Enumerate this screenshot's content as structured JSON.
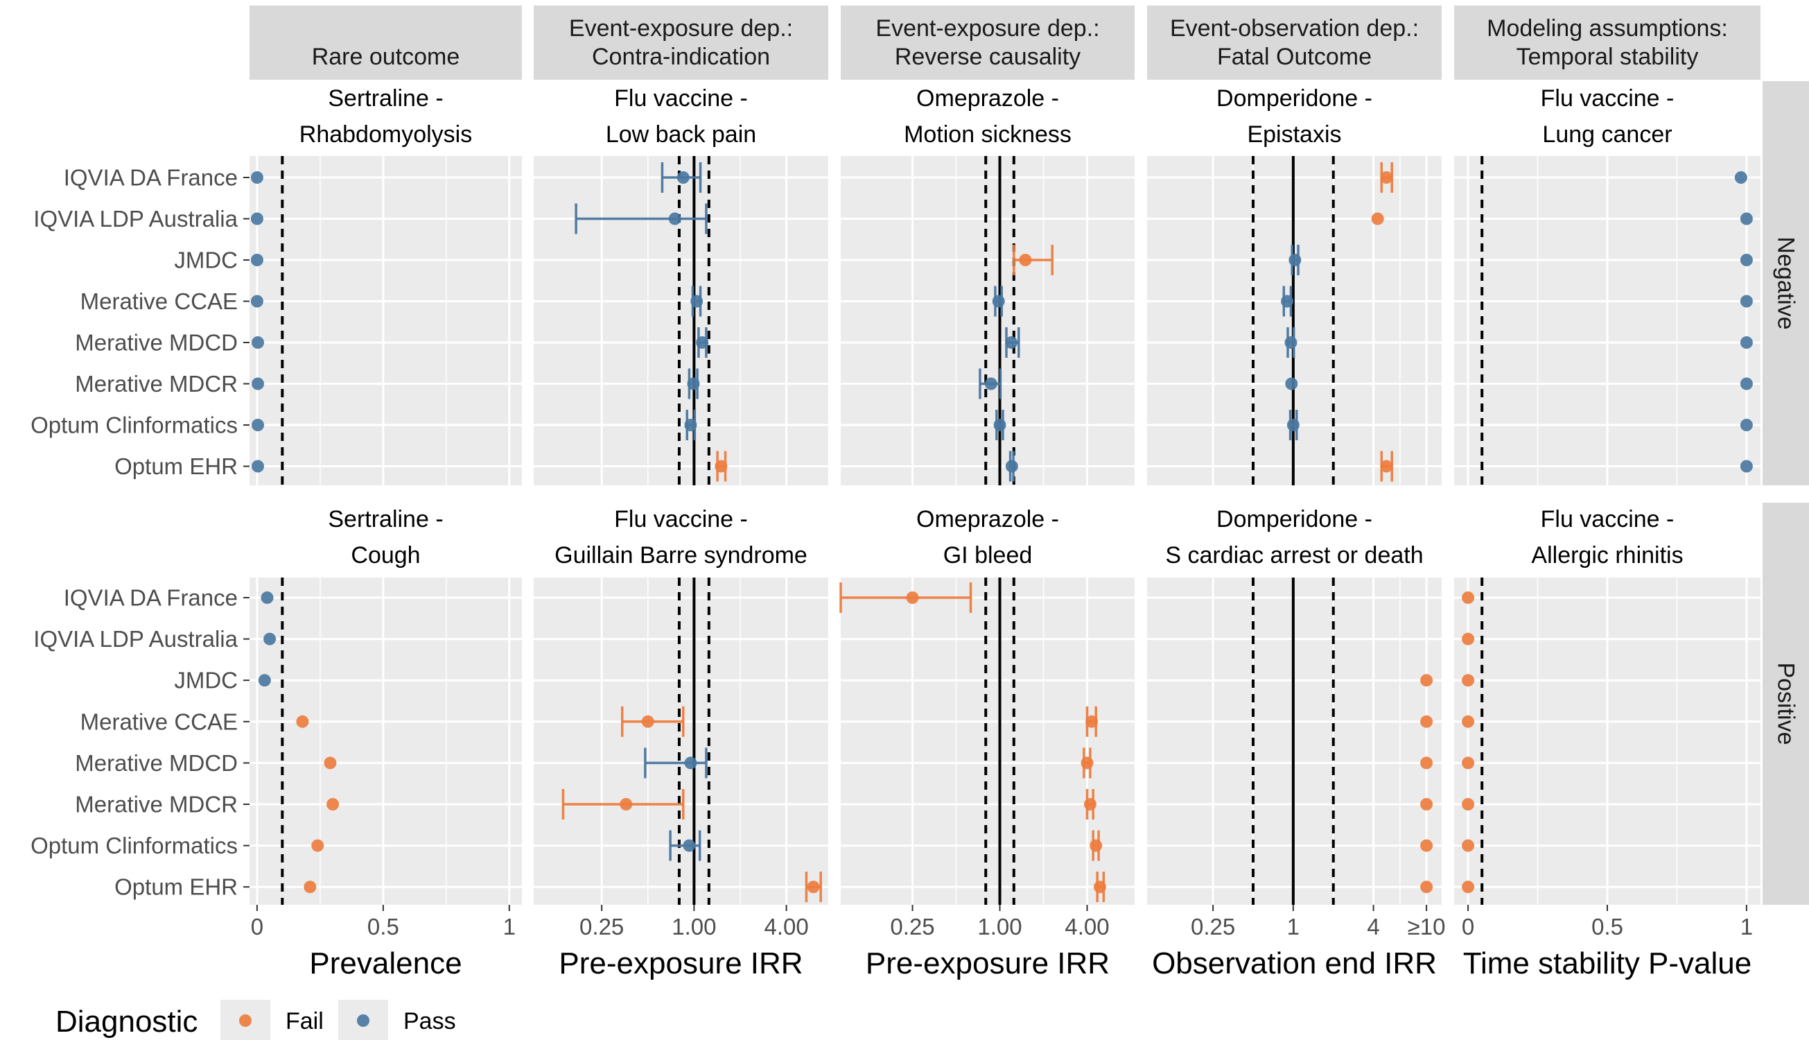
{
  "chart_data": {
    "type": "scatter",
    "colors": {
      "Fail": "#ED7D3E",
      "Pass": "#4A77A0"
    },
    "legend": {
      "title": "Diagnostic",
      "entries": [
        "Fail",
        "Pass"
      ],
      "placement": "bottom-left"
    },
    "databases": [
      "IQVIA DA France",
      "IQVIA LDP Australia",
      "JMDC",
      "Merative CCAE",
      "Merative MDCD",
      "Merative MDCR",
      "Optum Clinformatics",
      "Optum EHR"
    ],
    "row_strips": [
      "Negative",
      "Positive"
    ],
    "column_strips": [
      {
        "line1": "",
        "line2": "Rare outcome"
      },
      {
        "line1": "Event-exposure dep.:",
        "line2": "Contra-indication"
      },
      {
        "line1": "Event-exposure dep.:",
        "line2": "Reverse causality"
      },
      {
        "line1": "Event-observation dep.:",
        "line2": "Fatal Outcome"
      },
      {
        "line1": "Modeling assumptions:",
        "line2": "Temporal stability"
      }
    ],
    "columns": [
      {
        "xlabel": "Prevalence",
        "scale": "linear",
        "xlim": [
          -0.03,
          1.05
        ],
        "ticks": [
          0,
          0.5,
          1
        ],
        "tick_labels": [
          "0",
          "0.5",
          "1"
        ],
        "dashed": [
          0.1
        ],
        "solid": []
      },
      {
        "xlabel": "Pre-exposure IRR",
        "scale": "log",
        "xlim": [
          0.09,
          7.5
        ],
        "ticks": [
          0.25,
          1,
          4
        ],
        "tick_labels": [
          "0.25",
          "1.00",
          "4.00"
        ],
        "dashed": [
          0.8,
          1.25
        ],
        "solid": [
          1
        ]
      },
      {
        "xlabel": "Pre-exposure IRR",
        "scale": "log",
        "xlim": [
          0.08,
          8.5
        ],
        "ticks": [
          0.25,
          1,
          4
        ],
        "tick_labels": [
          "0.25",
          "1.00",
          "4.00"
        ],
        "dashed": [
          0.8,
          1.25
        ],
        "solid": [
          1
        ]
      },
      {
        "xlabel": "Observation end IRR",
        "scale": "log",
        "xlim": [
          0.08,
          13
        ],
        "ticks": [
          0.25,
          1,
          4,
          10
        ],
        "tick_labels": [
          "0.25",
          "1",
          "4",
          "≥10"
        ],
        "dashed": [
          0.5,
          2
        ],
        "solid": [
          1
        ]
      },
      {
        "xlabel": "Time stability P-value",
        "scale": "linear",
        "xlim": [
          -0.05,
          1.05
        ],
        "ticks": [
          0,
          0.5,
          1
        ],
        "tick_labels": [
          "0",
          "0.5",
          "1"
        ],
        "dashed": [
          0.05
        ],
        "solid": []
      }
    ],
    "panels": [
      {
        "row": 0,
        "col": 0,
        "title1": "Sertraline -",
        "title2": "Rhabdomyolysis",
        "points": [
          {
            "db": "IQVIA DA France",
            "x": 0.0,
            "status": "Pass"
          },
          {
            "db": "IQVIA LDP Australia",
            "x": 0.0,
            "status": "Pass"
          },
          {
            "db": "JMDC",
            "x": 0.0,
            "status": "Pass"
          },
          {
            "db": "Merative CCAE",
            "x": 0.0,
            "status": "Pass"
          },
          {
            "db": "Merative MDCD",
            "x": 0.003,
            "status": "Pass"
          },
          {
            "db": "Merative MDCR",
            "x": 0.003,
            "status": "Pass"
          },
          {
            "db": "Optum Clinformatics",
            "x": 0.003,
            "status": "Pass"
          },
          {
            "db": "Optum EHR",
            "x": 0.003,
            "status": "Pass"
          }
        ]
      },
      {
        "row": 0,
        "col": 1,
        "title1": "Flu vaccine -",
        "title2": "Low back pain",
        "points": [
          {
            "db": "IQVIA DA France",
            "x": 0.85,
            "lo": 0.62,
            "hi": 1.1,
            "status": "Pass"
          },
          {
            "db": "IQVIA LDP Australia",
            "x": 0.75,
            "lo": 0.17,
            "hi": 1.2,
            "status": "Pass"
          },
          {
            "db": "Merative CCAE",
            "x": 1.04,
            "lo": 0.98,
            "hi": 1.1,
            "status": "Pass"
          },
          {
            "db": "Merative MDCD",
            "x": 1.13,
            "lo": 1.07,
            "hi": 1.2,
            "status": "Pass"
          },
          {
            "db": "Merative MDCR",
            "x": 0.99,
            "lo": 0.93,
            "hi": 1.05,
            "status": "Pass"
          },
          {
            "db": "Optum Clinformatics",
            "x": 0.95,
            "lo": 0.9,
            "hi": 1.01,
            "status": "Pass"
          },
          {
            "db": "Optum EHR",
            "x": 1.5,
            "lo": 1.42,
            "hi": 1.6,
            "status": "Fail"
          }
        ]
      },
      {
        "row": 0,
        "col": 2,
        "title1": "Omeprazole -",
        "title2": "Motion sickness",
        "points": [
          {
            "db": "JMDC",
            "x": 1.5,
            "lo": 1.25,
            "hi": 2.3,
            "status": "Fail"
          },
          {
            "db": "Merative CCAE",
            "x": 0.98,
            "lo": 0.93,
            "hi": 1.03,
            "status": "Pass"
          },
          {
            "db": "Merative MDCD",
            "x": 1.2,
            "lo": 1.11,
            "hi": 1.35,
            "status": "Pass"
          },
          {
            "db": "Merative MDCR",
            "x": 0.87,
            "lo": 0.73,
            "hi": 1.01,
            "status": "Pass"
          },
          {
            "db": "Optum Clinformatics",
            "x": 1.0,
            "lo": 0.95,
            "hi": 1.05,
            "status": "Pass"
          },
          {
            "db": "Optum EHR",
            "x": 1.21,
            "lo": 1.18,
            "hi": 1.24,
            "status": "Pass"
          }
        ]
      },
      {
        "row": 0,
        "col": 3,
        "title1": "Domperidone -",
        "title2": "Epistaxis",
        "points": [
          {
            "db": "IQVIA DA France",
            "x": 5.0,
            "lo": 4.6,
            "hi": 5.5,
            "status": "Fail"
          },
          {
            "db": "IQVIA LDP Australia",
            "x": 4.3,
            "status": "Fail"
          },
          {
            "db": "JMDC",
            "x": 1.03,
            "lo": 0.98,
            "hi": 1.09,
            "status": "Pass"
          },
          {
            "db": "Merative CCAE",
            "x": 0.9,
            "lo": 0.85,
            "hi": 0.96,
            "status": "Pass"
          },
          {
            "db": "Merative MDCD",
            "x": 0.96,
            "lo": 0.91,
            "hi": 1.01,
            "status": "Pass"
          },
          {
            "db": "Merative MDCR",
            "x": 0.97,
            "status": "Pass"
          },
          {
            "db": "Optum Clinformatics",
            "x": 1.0,
            "lo": 0.95,
            "hi": 1.06,
            "status": "Pass"
          },
          {
            "db": "Optum EHR",
            "x": 5.0,
            "lo": 4.6,
            "hi": 5.5,
            "status": "Fail"
          }
        ]
      },
      {
        "row": 0,
        "col": 4,
        "title1": "Flu vaccine -",
        "title2": "Lung cancer",
        "points": [
          {
            "db": "IQVIA DA France",
            "x": 0.98,
            "status": "Pass"
          },
          {
            "db": "IQVIA LDP Australia",
            "x": 1.0,
            "status": "Pass"
          },
          {
            "db": "JMDC",
            "x": 1.0,
            "status": "Pass"
          },
          {
            "db": "Merative CCAE",
            "x": 1.0,
            "status": "Pass"
          },
          {
            "db": "Merative MDCD",
            "x": 1.0,
            "status": "Pass"
          },
          {
            "db": "Merative MDCR",
            "x": 1.0,
            "status": "Pass"
          },
          {
            "db": "Optum Clinformatics",
            "x": 1.0,
            "status": "Pass"
          },
          {
            "db": "Optum EHR",
            "x": 1.0,
            "status": "Pass"
          }
        ]
      },
      {
        "row": 1,
        "col": 0,
        "title1": "Sertraline -",
        "title2": "Cough",
        "points": [
          {
            "db": "IQVIA DA France",
            "x": 0.04,
            "status": "Pass"
          },
          {
            "db": "IQVIA LDP Australia",
            "x": 0.05,
            "status": "Pass"
          },
          {
            "db": "JMDC",
            "x": 0.03,
            "status": "Pass"
          },
          {
            "db": "Merative CCAE",
            "x": 0.18,
            "status": "Fail"
          },
          {
            "db": "Merative MDCD",
            "x": 0.29,
            "status": "Fail"
          },
          {
            "db": "Merative MDCR",
            "x": 0.3,
            "status": "Fail"
          },
          {
            "db": "Optum Clinformatics",
            "x": 0.24,
            "status": "Fail"
          },
          {
            "db": "Optum EHR",
            "x": 0.21,
            "status": "Fail"
          }
        ]
      },
      {
        "row": 1,
        "col": 1,
        "title1": "Flu vaccine -",
        "title2": "Guillain Barre syndrome",
        "points": [
          {
            "db": "Merative CCAE",
            "x": 0.5,
            "lo": 0.34,
            "hi": 0.85,
            "status": "Fail"
          },
          {
            "db": "Merative MDCD",
            "x": 0.95,
            "lo": 0.48,
            "hi": 1.2,
            "status": "Pass"
          },
          {
            "db": "Merative MDCR",
            "x": 0.36,
            "lo": 0.14,
            "hi": 0.85,
            "status": "Fail"
          },
          {
            "db": "Optum Clinformatics",
            "x": 0.93,
            "lo": 0.7,
            "hi": 1.09,
            "status": "Pass"
          },
          {
            "db": "Optum EHR",
            "x": 6.0,
            "lo": 5.4,
            "hi": 6.7,
            "status": "Fail"
          }
        ]
      },
      {
        "row": 1,
        "col": 2,
        "title1": "Omeprazole -",
        "title2": "GI bleed",
        "points": [
          {
            "db": "IQVIA DA France",
            "x": 0.25,
            "lo": 0.08,
            "hi": 0.63,
            "status": "Fail"
          },
          {
            "db": "Merative CCAE",
            "x": 4.3,
            "lo": 4.0,
            "hi": 4.6,
            "status": "Fail"
          },
          {
            "db": "Merative MDCD",
            "x": 4.0,
            "lo": 3.8,
            "hi": 4.2,
            "status": "Fail"
          },
          {
            "db": "Merative MDCR",
            "x": 4.2,
            "lo": 4.0,
            "hi": 4.4,
            "status": "Fail"
          },
          {
            "db": "Optum Clinformatics",
            "x": 4.6,
            "lo": 4.4,
            "hi": 4.8,
            "status": "Fail"
          },
          {
            "db": "Optum EHR",
            "x": 4.9,
            "lo": 4.7,
            "hi": 5.2,
            "status": "Fail"
          }
        ]
      },
      {
        "row": 1,
        "col": 3,
        "title1": "Domperidone -",
        "title2": "S cardiac arrest or death",
        "points": [
          {
            "db": "JMDC",
            "x": 10,
            "status": "Fail"
          },
          {
            "db": "Merative CCAE",
            "x": 10,
            "status": "Fail"
          },
          {
            "db": "Merative MDCD",
            "x": 10,
            "status": "Fail"
          },
          {
            "db": "Merative MDCR",
            "x": 10,
            "status": "Fail"
          },
          {
            "db": "Optum Clinformatics",
            "x": 10,
            "status": "Fail"
          },
          {
            "db": "Optum EHR",
            "x": 10,
            "status": "Fail"
          }
        ]
      },
      {
        "row": 1,
        "col": 4,
        "title1": "Flu vaccine -",
        "title2": "Allergic rhinitis",
        "points": [
          {
            "db": "IQVIA DA France",
            "x": 0.0,
            "status": "Fail"
          },
          {
            "db": "IQVIA LDP Australia",
            "x": 0.0,
            "status": "Fail"
          },
          {
            "db": "JMDC",
            "x": 0.0,
            "status": "Fail"
          },
          {
            "db": "Merative CCAE",
            "x": 0.0,
            "status": "Fail"
          },
          {
            "db": "Merative MDCD",
            "x": 0.0,
            "status": "Fail"
          },
          {
            "db": "Merative MDCR",
            "x": 0.0,
            "status": "Fail"
          },
          {
            "db": "Optum Clinformatics",
            "x": 0.0,
            "status": "Fail"
          },
          {
            "db": "Optum EHR",
            "x": 0.0,
            "status": "Fail"
          }
        ]
      }
    ]
  }
}
